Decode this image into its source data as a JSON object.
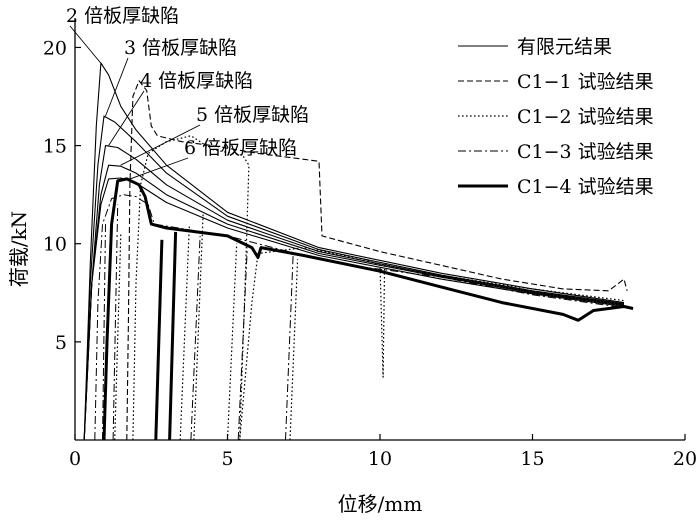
{
  "chart_data": {
    "type": "line",
    "xlabel": "位移/mm",
    "ylabel": "荷载/kN",
    "xlim": [
      0,
      20
    ],
    "ylim": [
      0,
      21.5
    ],
    "xticks": [
      0,
      5,
      10,
      15,
      20
    ],
    "yticks": [
      5,
      10,
      15,
      20
    ],
    "grid": false,
    "legend_position": "top-right",
    "series": [
      {
        "name": "有限元结果",
        "style": "solid",
        "curves": [
          {
            "label": "2 倍板厚缺陷",
            "points": [
              [
                0.3,
                0
              ],
              [
                0.5,
                9
              ],
              [
                0.7,
                16
              ],
              [
                0.85,
                19.2
              ],
              [
                1.1,
                18.6
              ],
              [
                1.5,
                17.0
              ],
              [
                2.0,
                15.8
              ],
              [
                3.0,
                14.0
              ],
              [
                5.0,
                11.6
              ],
              [
                8.0,
                9.8
              ],
              [
                12.0,
                8.5
              ],
              [
                15.0,
                7.7
              ],
              [
                18.0,
                7.0
              ]
            ]
          },
          {
            "label": "3 倍板厚缺陷",
            "points": [
              [
                0.3,
                0
              ],
              [
                0.5,
                8
              ],
              [
                0.75,
                14
              ],
              [
                0.95,
                16.5
              ],
              [
                1.3,
                16.2
              ],
              [
                2.0,
                15.2
              ],
              [
                3.0,
                13.6
              ],
              [
                5.0,
                11.4
              ],
              [
                8.0,
                9.7
              ],
              [
                12.0,
                8.4
              ],
              [
                15.0,
                7.6
              ],
              [
                18.0,
                6.95
              ]
            ]
          },
          {
            "label": "4 倍板厚缺陷",
            "points": [
              [
                0.3,
                0
              ],
              [
                0.55,
                8
              ],
              [
                0.8,
                13
              ],
              [
                1.0,
                15.0
              ],
              [
                1.4,
                14.9
              ],
              [
                2.0,
                14.3
              ],
              [
                3.0,
                13.0
              ],
              [
                5.0,
                11.2
              ],
              [
                8.0,
                9.6
              ],
              [
                12.0,
                8.35
              ],
              [
                15.0,
                7.55
              ],
              [
                18.0,
                6.9
              ]
            ]
          },
          {
            "label": "5 倍板厚缺陷",
            "points": [
              [
                0.3,
                0
              ],
              [
                0.55,
                8
              ],
              [
                0.85,
                12.5
              ],
              [
                1.1,
                14.0
              ],
              [
                1.5,
                13.95
              ],
              [
                2.0,
                13.6
              ],
              [
                3.0,
                12.5
              ],
              [
                5.0,
                11.0
              ],
              [
                8.0,
                9.5
              ],
              [
                12.0,
                8.3
              ],
              [
                15.0,
                7.5
              ],
              [
                18.0,
                6.85
              ]
            ]
          },
          {
            "label": "6 倍板厚缺陷",
            "points": [
              [
                0.3,
                0
              ],
              [
                0.55,
                8
              ],
              [
                0.85,
                12
              ],
              [
                1.1,
                13.3
              ],
              [
                1.5,
                13.35
              ],
              [
                2.0,
                13.1
              ],
              [
                3.0,
                12.1
              ],
              [
                5.0,
                10.8
              ],
              [
                8.0,
                9.4
              ],
              [
                12.0,
                8.2
              ],
              [
                15.0,
                7.45
              ],
              [
                18.0,
                6.8
              ]
            ]
          }
        ]
      },
      {
        "name": "C1−1 试验结果",
        "style": "dashed",
        "points": [
          [
            1.7,
            0
          ],
          [
            1.75,
            6
          ],
          [
            1.8,
            13
          ],
          [
            1.9,
            17.5
          ],
          [
            2.1,
            18.3
          ],
          [
            2.35,
            17.8
          ],
          [
            2.5,
            16
          ],
          [
            2.7,
            15.5
          ],
          [
            3.5,
            15.2
          ],
          [
            4.5,
            15.0
          ],
          [
            6.0,
            14.6
          ],
          [
            7.5,
            14.3
          ],
          [
            8.0,
            14.2
          ],
          [
            8.1,
            10.4
          ],
          [
            10.0,
            9.6
          ],
          [
            12.0,
            8.9
          ],
          [
            14.0,
            8.2
          ],
          [
            16.0,
            7.7
          ],
          [
            17.5,
            7.6
          ],
          [
            18.0,
            8.2
          ],
          [
            18.1,
            7.6
          ]
        ]
      },
      {
        "name": "C1−2 试验结果",
        "style": "dotted",
        "points": [
          [
            1.9,
            0
          ],
          [
            2.0,
            8
          ],
          [
            2.15,
            13
          ],
          [
            2.4,
            14.6
          ],
          [
            3.0,
            15.2
          ],
          [
            3.8,
            15.5
          ],
          [
            4.5,
            14.8
          ],
          [
            5.5,
            14.5
          ],
          [
            5.7,
            14.0
          ],
          [
            5.6,
            9
          ],
          [
            5.4,
            0
          ],
          [
            5.8,
            7
          ],
          [
            6.0,
            9.5
          ],
          [
            7.5,
            9.8
          ],
          [
            9.5,
            9.2
          ],
          [
            10.0,
            8.9
          ],
          [
            10.1,
            3.2
          ],
          [
            10.15,
            9.0
          ],
          [
            10.4,
            8.8
          ],
          [
            12.0,
            8.4
          ],
          [
            14.0,
            7.9
          ],
          [
            16.0,
            7.5
          ],
          [
            18.0,
            7.1
          ]
        ]
      },
      {
        "name": "C1−3 试验结果",
        "style": "dashdot",
        "points": [
          [
            0.65,
            0
          ],
          [
            0.75,
            7
          ],
          [
            0.9,
            11
          ],
          [
            1.2,
            12.3
          ],
          [
            1.6,
            12.5
          ],
          [
            2.0,
            12.4
          ],
          [
            2.4,
            12.0
          ],
          [
            2.6,
            11.0
          ],
          [
            3.0,
            10.9
          ],
          [
            5.0,
            10.4
          ],
          [
            7.0,
            9.6
          ],
          [
            9.0,
            8.9
          ],
          [
            12.0,
            8.3
          ],
          [
            15.0,
            7.4
          ],
          [
            18.2,
            6.7
          ]
        ]
      },
      {
        "name": "C1−4 试验结果",
        "style": "thick",
        "points": [
          [
            0.95,
            0
          ],
          [
            1.05,
            5
          ],
          [
            1.2,
            11
          ],
          [
            1.4,
            13.2
          ],
          [
            1.7,
            13.3
          ],
          [
            2.1,
            13.0
          ],
          [
            2.3,
            12.4
          ],
          [
            2.5,
            11.0
          ],
          [
            3.0,
            10.8
          ],
          [
            5.0,
            10.4
          ],
          [
            5.8,
            9.8
          ],
          [
            6.0,
            9.3
          ],
          [
            6.1,
            9.8
          ],
          [
            7.5,
            9.4
          ],
          [
            10.0,
            8.6
          ],
          [
            12.0,
            7.8
          ],
          [
            14.0,
            7.0
          ],
          [
            16.0,
            6.4
          ],
          [
            16.5,
            6.1
          ],
          [
            17.0,
            6.6
          ],
          [
            18.0,
            6.8
          ],
          [
            18.3,
            6.7
          ]
        ]
      }
    ]
  }
}
